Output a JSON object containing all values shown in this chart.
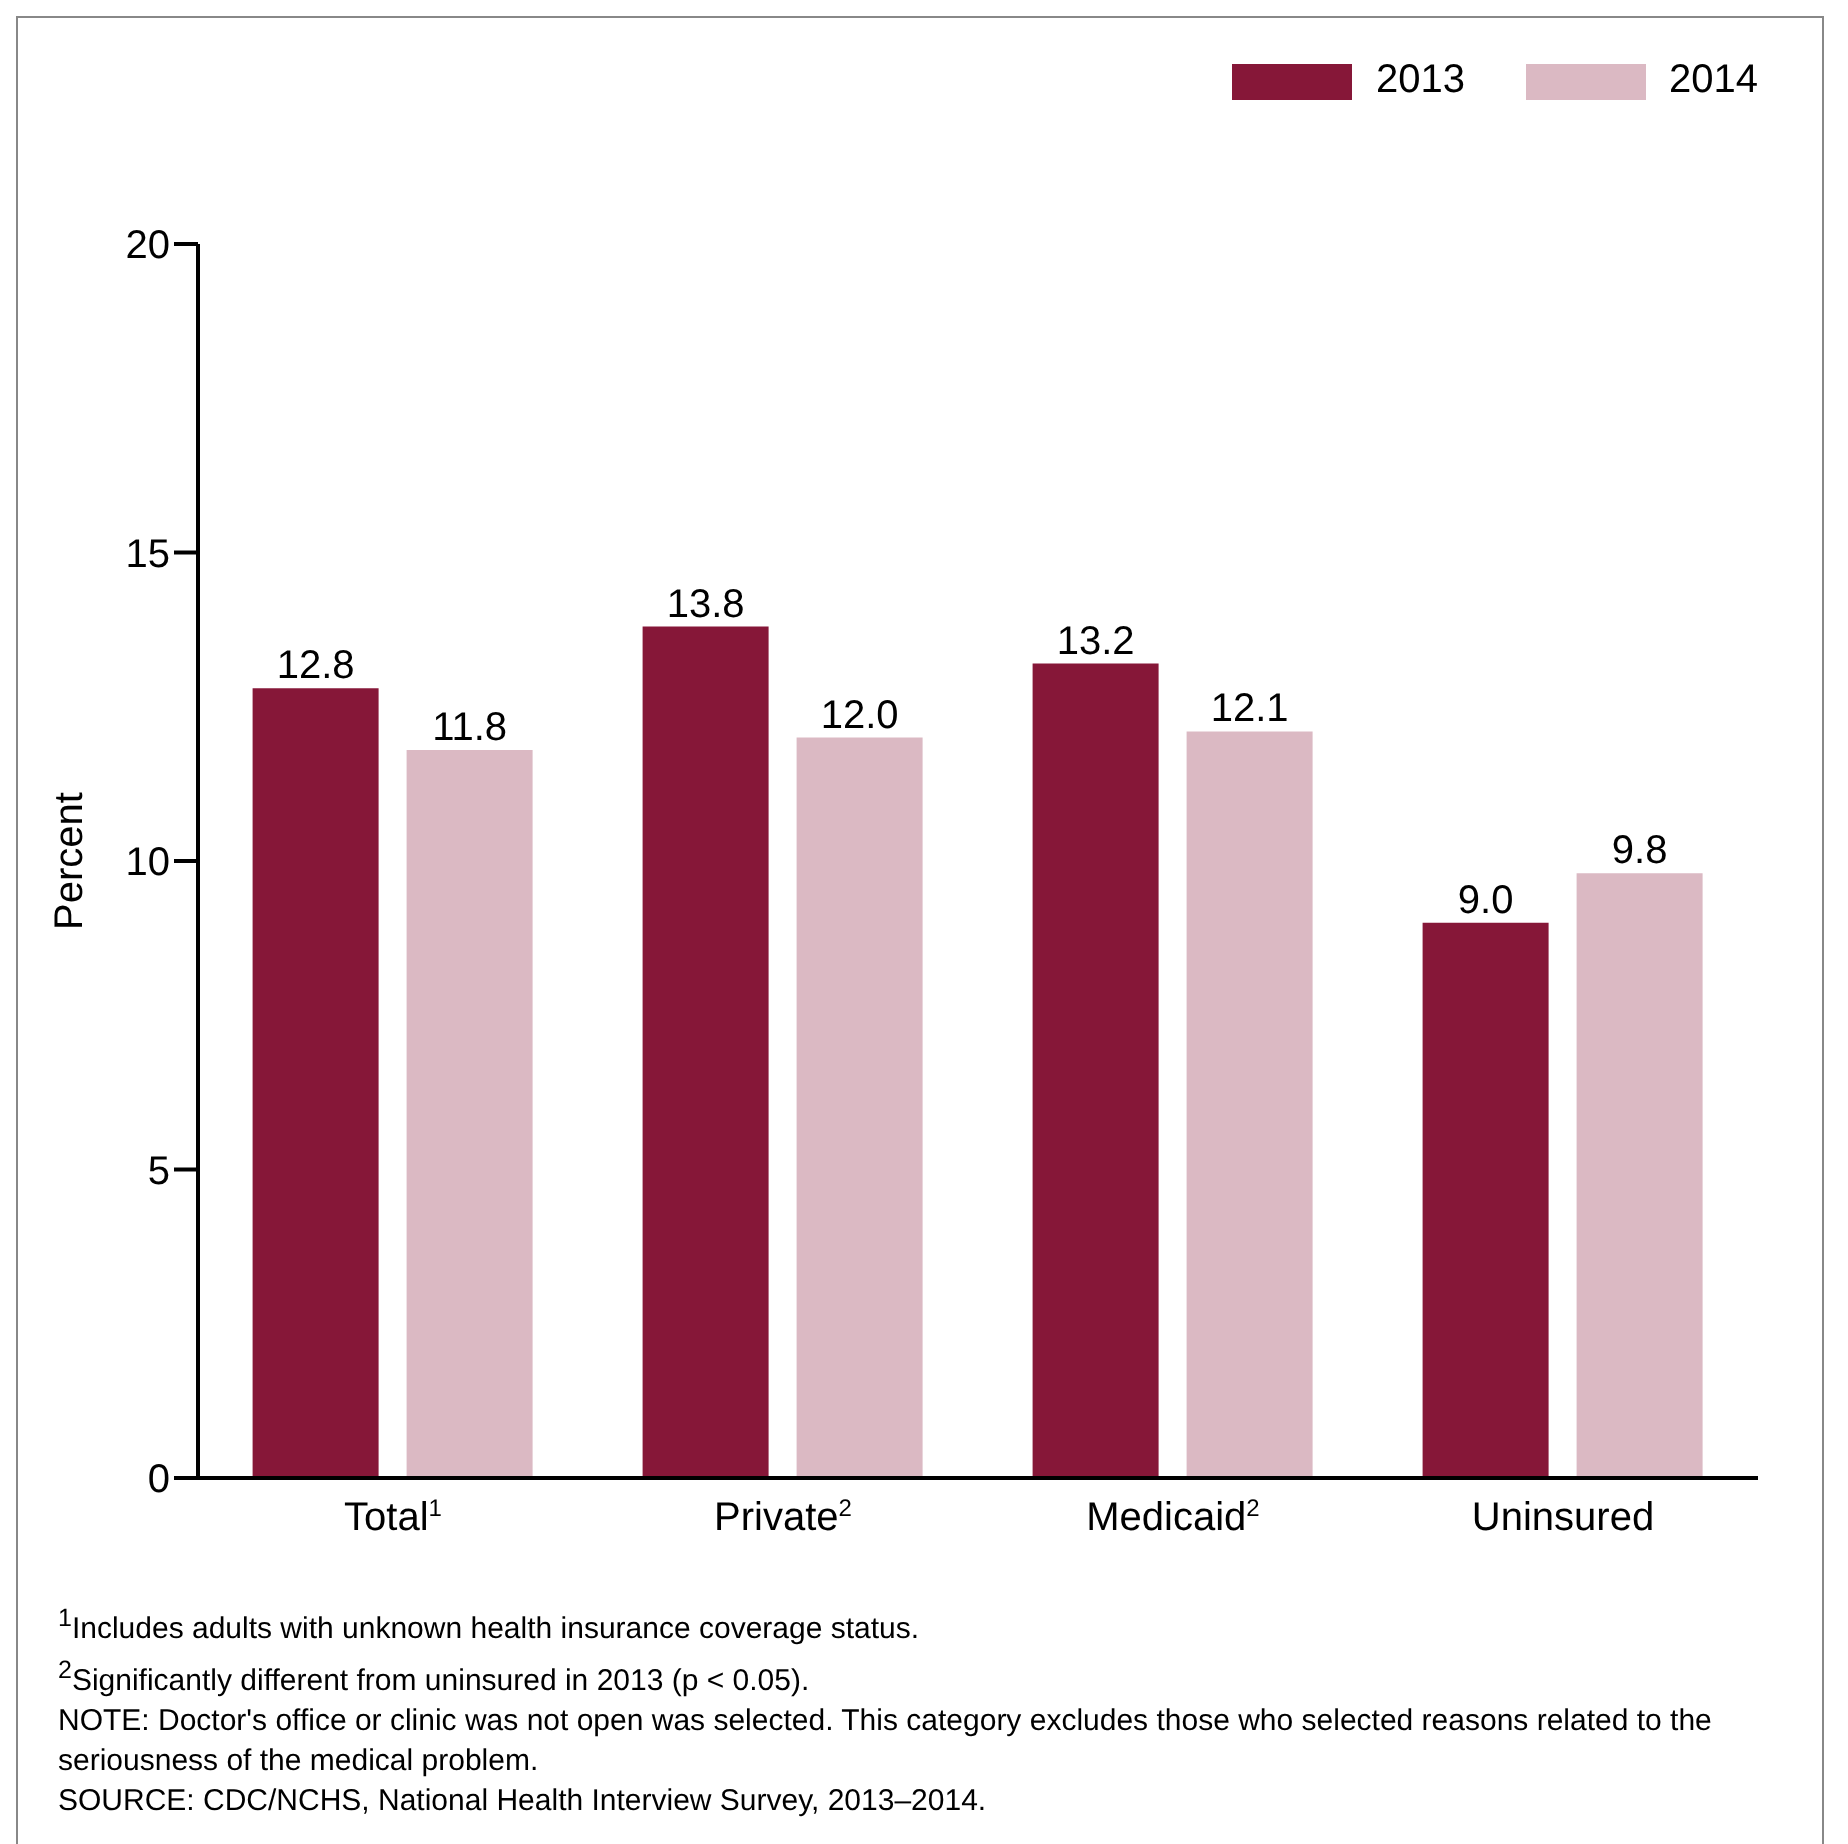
{
  "chart_data": {
    "type": "bar",
    "categories": [
      "Total$^{1}$",
      "Private$^{2}$",
      "Medicaid$^{2}$",
      "Uninsured"
    ],
    "series": [
      {
        "name": "2013",
        "color": "#861738",
        "values": [
          12.8,
          13.8,
          13.2,
          9.0
        ],
        "value_labels": [
          "12.8",
          "13.8",
          "13.2",
          "9.0"
        ]
      },
      {
        "name": "2014",
        "color": "#dbb9c3",
        "values": [
          11.8,
          12.0,
          12.1,
          9.8
        ],
        "value_labels": [
          "11.8",
          "12.0",
          "12.1",
          "9.8"
        ]
      }
    ],
    "ylabel": "Percent",
    "ylim": [
      0,
      20
    ],
    "yticks": [
      0,
      5,
      10,
      15,
      20
    ],
    "grid": false,
    "legend": "top right",
    "annotations": [
      "$^{1}$Includes adults with unknown health insurance coverage status.",
      "$^{2}$Significantly different from uninsured in 2013 (p < 0.05).",
      "NOTE: Doctor's office or clinic was not open was selected. This category excludes those who selected reasons related to the seriousness of the medical problem.",
      "SOURCE: CDC/NCHS, National Health Interview Survey, 2013–2014."
    ]
  }
}
